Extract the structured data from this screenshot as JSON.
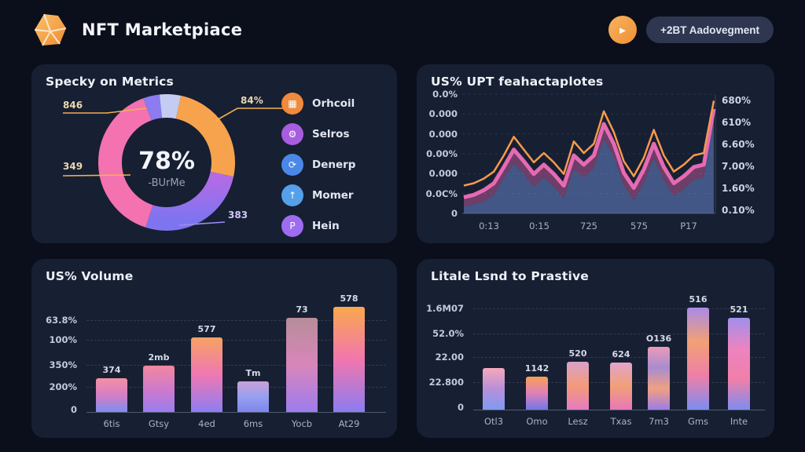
{
  "header": {
    "logo_icon": "gem-icon",
    "title": "NFT Marketpiace",
    "action_icon": "send-icon",
    "action_button": "+2BT Aadovegment"
  },
  "colors": {
    "page_bg": "#0b0f1c",
    "panel_bg": "#171f33",
    "accent_orange": "#f59a4c",
    "accent_pink": "#ef6eb8",
    "accent_purple": "#8d7bf0",
    "accent_blue": "#6e8fd8"
  },
  "chart_data": [
    {
      "id": "metrics-donut",
      "type": "pie",
      "title": "Specky on Metrics",
      "center_value": "78%",
      "center_label": "-BUrMe",
      "slices": [
        {
          "label": "846",
          "pct": 4,
          "color": "#8d7bf0",
          "start": -20,
          "end": -6
        },
        {
          "label": "",
          "pct": 5,
          "color": "#c4ccf4",
          "start": -6,
          "end": 12
        },
        {
          "label": "84%",
          "pct": 25,
          "color": "#f7a34e",
          "start": 12,
          "end": 102
        },
        {
          "label": "383",
          "pct": 27,
          "color": "#9a6cf0",
          "start": 102,
          "end": 198,
          "gradient": [
            "#b76ae4",
            "#7f74f0"
          ]
        },
        {
          "label": "349",
          "pct": 39,
          "color": "#f472b0",
          "start": 198,
          "end": 340
        }
      ],
      "legend": [
        {
          "label": "Orhcoil",
          "color": "#f08a3c",
          "icon": "chart-icon",
          "glyph": "▦"
        },
        {
          "label": "Selros",
          "color": "#a85ce0",
          "icon": "gear-icon",
          "glyph": "⚙"
        },
        {
          "label": "Denerp",
          "color": "#4a88e8",
          "icon": "refresh-icon",
          "glyph": "⟳"
        },
        {
          "label": "Momer",
          "color": "#55a0e8",
          "icon": "upload-icon",
          "glyph": "↑"
        },
        {
          "label": "Hein",
          "color": "#9d6cf0",
          "icon": "p-badge-icon",
          "glyph": "P"
        }
      ]
    },
    {
      "id": "upt-line",
      "type": "area",
      "title": "US% UPT feahactaplotes",
      "y_left_ticks": [
        "0.0%",
        "0.000",
        "0.000",
        "0.00%",
        "0.000",
        "0.0C%",
        "0"
      ],
      "y_right_ticks": [
        "680%",
        "610%",
        "6.60%",
        "7.00%",
        "1.60%",
        "0.10%"
      ],
      "x_ticks": [
        "0:13",
        "0:15",
        "725",
        "575",
        "P17"
      ],
      "series": [
        {
          "name": "orange",
          "color": "#f59a4c",
          "values": [
            24,
            26,
            30,
            36,
            50,
            66,
            55,
            44,
            52,
            44,
            34,
            62,
            52,
            60,
            88,
            70,
            45,
            32,
            48,
            72,
            50,
            36,
            42,
            50,
            52,
            97
          ]
        },
        {
          "name": "pink",
          "color": "#ef6eb8",
          "values": [
            14,
            16,
            20,
            26,
            40,
            55,
            45,
            34,
            42,
            34,
            24,
            50,
            42,
            50,
            77,
            60,
            35,
            22,
            38,
            60,
            40,
            26,
            32,
            40,
            42,
            90
          ]
        },
        {
          "name": "blue",
          "color": "#6e8fd8",
          "values": [
            6,
            8,
            10,
            16,
            30,
            43,
            34,
            23,
            31,
            23,
            13,
            38,
            31,
            39,
            64,
            49,
            24,
            11,
            26,
            47,
            29,
            15,
            21,
            29,
            31,
            80
          ]
        }
      ]
    },
    {
      "id": "volume-bars",
      "type": "bar",
      "title": "US% Volume",
      "y_ticks": [
        "63.8%",
        "100%",
        "350%",
        "200%",
        "0"
      ],
      "categories": [
        "6tis",
        "Gtsy",
        "4ed",
        "6ms",
        "Yocb",
        "At29"
      ],
      "value_labels": [
        "374",
        "2mb",
        "577",
        "Tm",
        "73",
        "578"
      ],
      "values": [
        43,
        59,
        95,
        39,
        120,
        134
      ],
      "gradients": [
        [
          "#f490a6",
          "#d57ec4",
          "#7e8cf0"
        ],
        [
          "#f2879e",
          "#cf7aca",
          "#9a7cf0"
        ],
        [
          "#f6a263",
          "#ef78b2",
          "#8e7df2"
        ],
        [
          "#c9a0d8",
          "#97a0f0",
          "#7d86ec"
        ],
        [
          "#b68d98",
          "#d886ba",
          "#9d7cee"
        ],
        [
          "#f9a84e",
          "#f276ae",
          "#8c7cf0"
        ]
      ]
    },
    {
      "id": "trend-bars",
      "type": "bar",
      "title": "Litale Lsnd to Prastive",
      "y_ticks": [
        "1.6M07",
        "52.0%",
        "22.00",
        "22.800",
        "0"
      ],
      "categories": [
        "Otl3",
        "Omo",
        "Lesz",
        "Txas",
        "7m3",
        "Gms",
        "Inte"
      ],
      "value_labels": [
        "",
        "1142",
        "520",
        "624",
        "O136",
        "516",
        "521"
      ],
      "values": [
        53,
        42,
        61,
        60,
        80,
        130,
        117
      ],
      "gradients": [
        [
          "#f4a8bc",
          "#b890d8",
          "#7f9af2"
        ],
        [
          "#f8a054",
          "#e080b8",
          "#7078e8"
        ],
        [
          "#d8a2c6",
          "#f49a7a",
          "#e57cc0"
        ],
        [
          "#e2a4ca",
          "#f2a078",
          "#e878b8"
        ],
        [
          "#ec9ab8",
          "#a88cd0",
          "#f0a080",
          "#9c7ce8"
        ],
        [
          "#a98ae8",
          "#f2a074",
          "#ee7fa8",
          "#7d8cf0"
        ],
        [
          "#a090ec",
          "#ec84c0",
          "#f07fa8",
          "#7e8cf0"
        ]
      ]
    }
  ]
}
